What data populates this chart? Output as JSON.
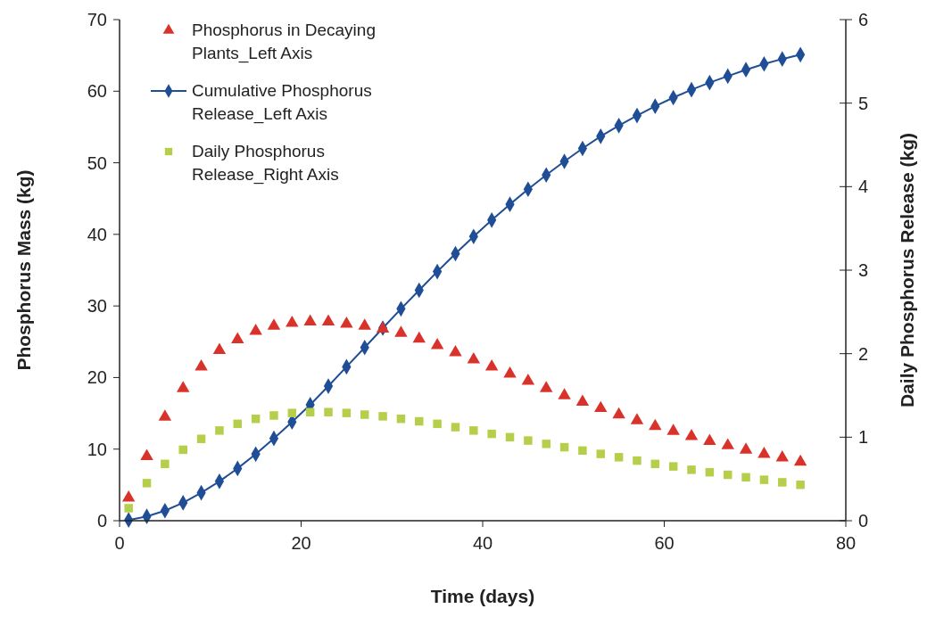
{
  "chart_data": {
    "type": "scatter",
    "xlabel": "Time (days)",
    "ylabel": "Phosphorus Mass (kg)",
    "y2label": "Daily Phosphorus Release (kg)",
    "x": [
      1,
      3,
      5,
      7,
      9,
      11,
      13,
      15,
      17,
      19,
      21,
      23,
      25,
      27,
      29,
      31,
      33,
      35,
      37,
      39,
      41,
      43,
      45,
      47,
      49,
      51,
      53,
      55,
      57,
      59,
      61,
      63,
      65,
      67,
      69,
      71,
      73,
      75
    ],
    "xlim": [
      0,
      80
    ],
    "xticks": [
      0,
      20,
      40,
      60,
      80
    ],
    "ylim": [
      0,
      70
    ],
    "yticks": [
      0,
      10,
      20,
      30,
      40,
      50,
      60,
      70
    ],
    "y2lim": [
      0,
      6
    ],
    "y2ticks": [
      0,
      1,
      2,
      3,
      4,
      5,
      6
    ],
    "grid": false,
    "legend": "top left",
    "series": [
      {
        "name": "Phosphorus in Decaying Plants_Left Axis",
        "type": "scatter",
        "marker": "triangle",
        "color": "#d9322a",
        "values": [
          3.2,
          9,
          14.5,
          18.5,
          21.5,
          23.8,
          25.3,
          26.5,
          27.2,
          27.6,
          27.8,
          27.8,
          27.5,
          27.2,
          26.8,
          26.2,
          25.4,
          24.5,
          23.5,
          22.5,
          21.5,
          20.5,
          19.5,
          18.5,
          17.5,
          16.6,
          15.7,
          14.8,
          14,
          13.2,
          12.5,
          11.8,
          11.1,
          10.5,
          9.9,
          9.3,
          8.8,
          8.2
        ]
      },
      {
        "name": "Cumulative Phosphorus Release_Left Axis",
        "type": "line",
        "marker": "diamond",
        "color": "#1f4e96",
        "values": [
          0.1,
          0.6,
          1.4,
          2.5,
          3.9,
          5.5,
          7.3,
          9.3,
          11.5,
          13.8,
          16.2,
          18.8,
          21.5,
          24.2,
          26.9,
          29.6,
          32.2,
          34.8,
          37.3,
          39.7,
          42,
          44.2,
          46.3,
          48.3,
          50.2,
          52,
          53.7,
          55.2,
          56.6,
          57.9,
          59.1,
          60.2,
          61.2,
          62.1,
          63,
          63.8,
          64.5,
          65.1
        ]
      },
      {
        "name": "Daily Phosphorus Release_Right Axis",
        "type": "scatter",
        "marker": "square",
        "axis": "y2",
        "color": "#b5cf4a",
        "values": [
          0.15,
          0.45,
          0.68,
          0.85,
          0.98,
          1.08,
          1.16,
          1.22,
          1.26,
          1.29,
          1.3,
          1.3,
          1.29,
          1.27,
          1.25,
          1.22,
          1.19,
          1.16,
          1.12,
          1.08,
          1.04,
          1.0,
          0.96,
          0.92,
          0.88,
          0.84,
          0.8,
          0.76,
          0.72,
          0.68,
          0.65,
          0.61,
          0.58,
          0.55,
          0.52,
          0.49,
          0.46,
          0.43
        ]
      }
    ]
  }
}
